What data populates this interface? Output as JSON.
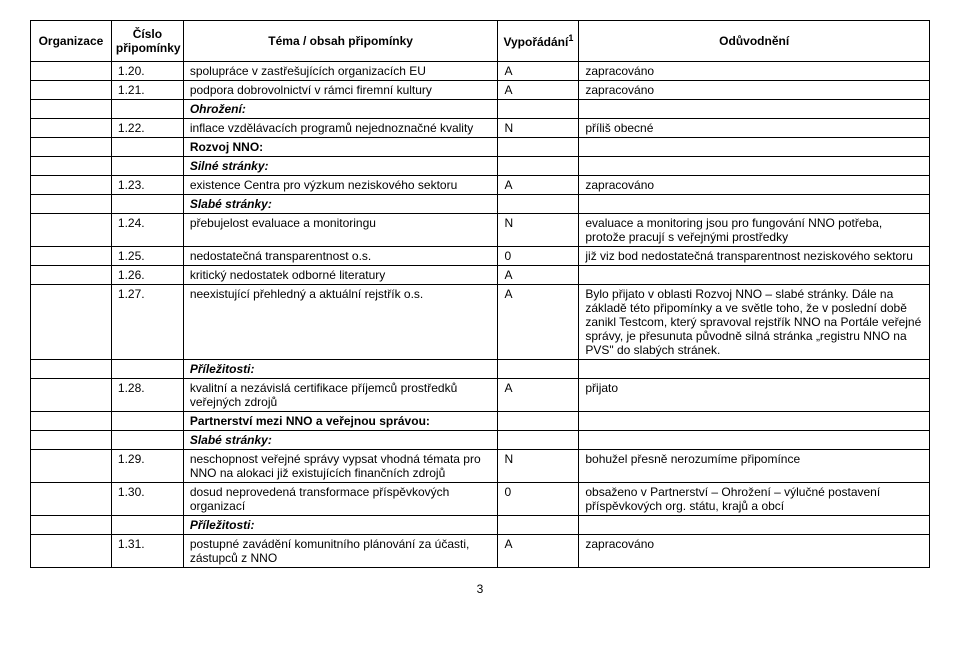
{
  "headers": {
    "org": "Organizace",
    "num": "Číslo připomínky",
    "topic": "Téma / obsah připomínky",
    "status": "Vypořádání",
    "status_sup": "1",
    "reason": "Odůvodnění"
  },
  "sections": {
    "ohrozeni": "Ohrožení:",
    "rozvoj_nno": "Rozvoj NNO:",
    "silne": "Silné stránky:",
    "slabe": "Slabé stránky:",
    "prilezitosti": "Příležitosti:",
    "partnerstvi": "Partnerství mezi NNO a veřejnou správou:"
  },
  "rows": {
    "r120": {
      "num": "1.20.",
      "topic": "spolupráce v zastřešujících organizacích EU",
      "status": "A",
      "reason": "zapracováno"
    },
    "r121": {
      "num": "1.21.",
      "topic": "podpora dobrovolnictví v rámci firemní kultury",
      "status": "A",
      "reason": "zapracováno"
    },
    "r122": {
      "num": "1.22.",
      "topic": "inflace vzdělávacích programů nejednoznačné kvality",
      "status": "N",
      "reason": "příliš obecné"
    },
    "r123": {
      "num": "1.23.",
      "topic": "existence Centra pro výzkum neziskového sektoru",
      "status": "A",
      "reason": "zapracováno"
    },
    "r124": {
      "num": "1.24.",
      "topic": "přebujelost evaluace a monitoringu",
      "status": "N",
      "reason": "evaluace a monitoring jsou pro fungování NNO potřeba, protože pracují s veřejnými prostředky"
    },
    "r125": {
      "num": "1.25.",
      "topic": "nedostatečná transparentnost o.s.",
      "status": "0",
      "reason": "již viz bod nedostatečná transparentnost neziskového sektoru"
    },
    "r126": {
      "num": "1.26.",
      "topic": "kritický nedostatek odborné literatury",
      "status": "A",
      "reason": ""
    },
    "r127": {
      "num": "1.27.",
      "topic": "neexistující přehledný a aktuální rejstřík o.s.",
      "status": "A",
      "reason": "Bylo přijato v oblasti Rozvoj NNO – slabé stránky. Dále na základě této připomínky a ve světle toho, že v poslední době zanikl Testcom, který spravoval rejstřík NNO na Portále veřejné správy, je přesunuta původně silná stránka „registru NNO na PVS\" do slabých stránek."
    },
    "r128": {
      "num": "1.28.",
      "topic": "kvalitní a nezávislá certifikace příjemců prostředků veřejných zdrojů",
      "status": "A",
      "reason": "přijato"
    },
    "r129": {
      "num": "1.29.",
      "topic": "neschopnost veřejné správy vypsat vhodná témata pro NNO na alokaci již existujících finančních zdrojů",
      "status": "N",
      "reason": "bohužel přesně nerozumíme připomínce"
    },
    "r130": {
      "num": "1.30.",
      "topic": "dosud neprovedená transformace příspěvkových organizací",
      "status": "0",
      "reason": "obsaženo v Partnerství – Ohrožení – výlučné postavení příspěvkových org. státu, krajů a obcí"
    },
    "r131": {
      "num": "1.31.",
      "topic": "postupné zavádění komunitního plánování za účasti, zástupců z NNO",
      "status": "A",
      "reason": "zapracováno"
    }
  },
  "page_number": "3"
}
